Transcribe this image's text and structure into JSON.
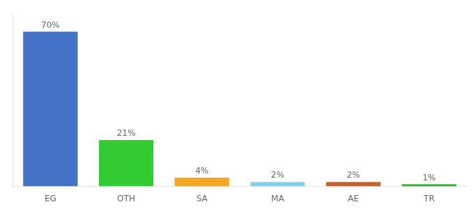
{
  "chart_data": {
    "type": "bar",
    "categories": [
      "EG",
      "OTH",
      "SA",
      "MA",
      "AE",
      "TR"
    ],
    "values": [
      70,
      21,
      4,
      2,
      2,
      1
    ],
    "value_labels": [
      "70%",
      "21%",
      "4%",
      "2%",
      "2%",
      "1%"
    ],
    "colors": [
      "#4472c4",
      "#33cc33",
      "#f5a623",
      "#87ceeb",
      "#c0622a",
      "#33aa33"
    ],
    "ylim": [
      0,
      78
    ],
    "data_labels": true,
    "tick_labels": "x",
    "grid": false
  }
}
